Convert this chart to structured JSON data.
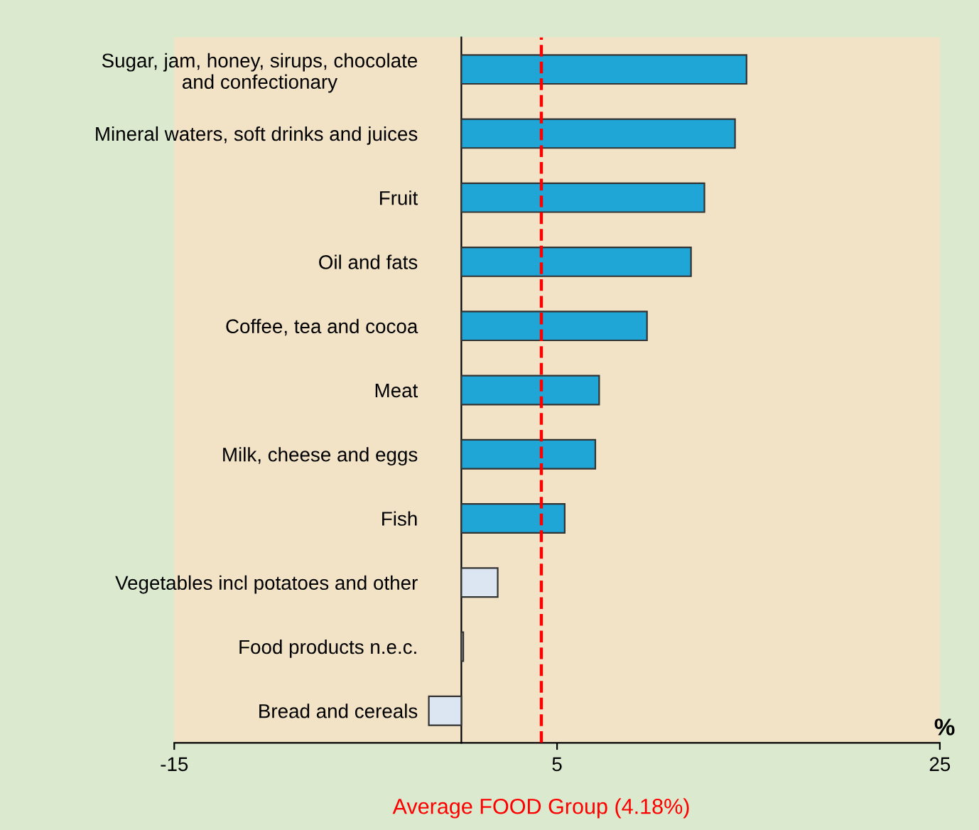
{
  "chart_data": {
    "type": "bar",
    "orientation": "horizontal",
    "categories": [
      "Sugar, jam, honey, sirups, chocolate\nand confectionary",
      "Mineral waters, soft drinks and juices",
      "Fruit",
      "Oil and fats",
      "Coffee, tea and cocoa",
      "Meat",
      "Milk, cheese and eggs",
      "Fish",
      "Vegetables incl potatoes and other",
      "Food products n.e.c.",
      "Bread and cereals"
    ],
    "values": [
      14.9,
      14.3,
      12.7,
      12.0,
      9.7,
      7.2,
      7.0,
      5.4,
      1.9,
      0.1,
      -1.7
    ],
    "colors": [
      "#1fa6d6",
      "#1fa6d6",
      "#1fa6d6",
      "#1fa6d6",
      "#1fa6d6",
      "#1fa6d6",
      "#1fa6d6",
      "#1fa6d6",
      "#dce6f2",
      "#dce6f2",
      "#dce6f2"
    ],
    "xlabel": "%",
    "xlim": [
      -15,
      25
    ],
    "xticks": [
      -15,
      5,
      25
    ],
    "ref_lines": [
      {
        "axis": "x",
        "value": 4.18,
        "label": "Average FOOD Group (4.18%)",
        "color": "#ff0000",
        "line_style": "dashed"
      }
    ],
    "grid": false,
    "legend": false
  }
}
